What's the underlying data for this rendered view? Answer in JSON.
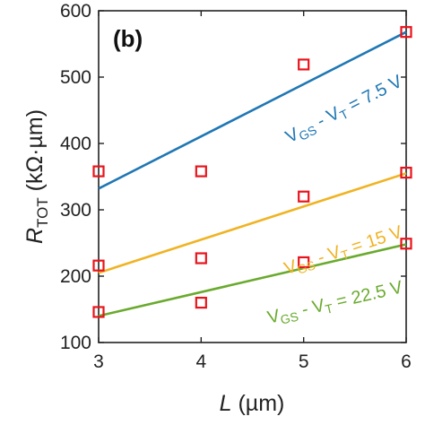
{
  "chart_data": {
    "type": "scatter",
    "panel_label": "(b)",
    "xlim": [
      3,
      6
    ],
    "ylim": [
      100,
      600
    ],
    "xticks": [
      "3",
      "4",
      "5",
      "6"
    ],
    "yticks": [
      "100",
      "200",
      "300",
      "400",
      "500",
      "600"
    ],
    "xlabel": {
      "symbol": "L",
      "unit": " (µm)"
    },
    "ylabel": {
      "symbol": "R",
      "sub": "TOT",
      "unit": " (kΩ·µm)"
    },
    "series": [
      {
        "name": "VGS - VT = 7.5 V",
        "label": {
          "v": "V",
          "gs": "GS",
          "mid": " - V",
          "t": "T",
          "rest": " = 7.5 V"
        },
        "color": "#1f77b4",
        "fit": [
          [
            3,
            332
          ],
          [
            6,
            568
          ]
        ],
        "points": [
          [
            3,
            358
          ],
          [
            4,
            358
          ],
          [
            5,
            519
          ],
          [
            6,
            568
          ]
        ]
      },
      {
        "name": "VGS - VT = 15 V",
        "label": {
          "v": "V",
          "gs": "GS",
          "mid": " - V",
          "t": "T",
          "rest": " = 15 V"
        },
        "color": "#f0b323",
        "fit": [
          [
            3,
            205
          ],
          [
            6,
            355
          ]
        ],
        "points": [
          [
            3,
            216
          ],
          [
            4,
            227
          ],
          [
            5,
            320
          ],
          [
            6,
            356
          ]
        ]
      },
      {
        "name": "VGS - VT = 22.5 V",
        "label": {
          "v": "V",
          "gs": "GS",
          "mid": " - V",
          "t": "T",
          "rest": " = 22.5 V"
        },
        "color": "#6aaa2e",
        "fit": [
          [
            3,
            140
          ],
          [
            6,
            248
          ]
        ],
        "points": [
          [
            3,
            146
          ],
          [
            4,
            160
          ],
          [
            5,
            221
          ],
          [
            6,
            249
          ]
        ]
      }
    ],
    "marker": {
      "shape": "open-square",
      "color": "#e8141c"
    },
    "grid": false,
    "legend": "none"
  }
}
